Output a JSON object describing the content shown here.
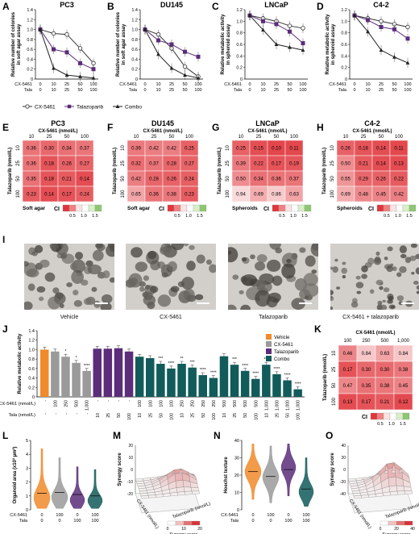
{
  "figure": {
    "labels": [
      "A",
      "B",
      "C",
      "D",
      "E",
      "F",
      "G",
      "H",
      "I",
      "J",
      "K",
      "L",
      "M",
      "N",
      "O"
    ],
    "colors": {
      "cx": "#9a9a9a",
      "tala": "#5b2d7a",
      "combo": "#125b5b",
      "vehicle": "#f08a2a",
      "syn_low": "#ffffff",
      "syn_high": "#d9323a"
    }
  },
  "row1": {
    "panels": [
      {
        "label": "A",
        "title": "PC3",
        "ylabel": [
          "Relative number of colonies",
          "in soft agar assay"
        ],
        "yticks": [
          "0",
          "0.2",
          "0.4",
          "0.6",
          "0.8",
          "1.0",
          "1.2",
          "1.4"
        ],
        "ymax": 1.4,
        "series": [
          [
            1.0,
            0.92,
            0.9,
            0.62,
            0.32
          ],
          [
            1.0,
            0.6,
            0.54,
            0.32,
            0.2
          ],
          [
            1.0,
            0.22,
            0.08,
            0.05,
            0.02
          ]
        ]
      },
      {
        "label": "B",
        "title": "DU145",
        "ylabel": [
          "Relative number of colonies",
          "in soft agar assay"
        ],
        "yticks": [
          "0",
          "0.2",
          "0.4",
          "0.6",
          "0.8",
          "1.0",
          "1.2",
          "1.4"
        ],
        "ymax": 1.4,
        "series": [
          [
            1.0,
            0.9,
            0.62,
            0.25,
            0.05
          ],
          [
            1.0,
            0.78,
            0.7,
            0.55,
            0.45
          ],
          [
            1.0,
            0.5,
            0.22,
            0.08,
            0.02
          ]
        ]
      },
      {
        "label": "C",
        "title": "LNCaP",
        "ylabel": [
          "Relative metabolic activity",
          "in spheroid assay"
        ],
        "yticks": [
          "0",
          "0.2",
          "0.4",
          "0.6",
          "0.8",
          "1.0",
          "1.2"
        ],
        "ymax": 1.2,
        "series": [
          [
            1.1,
            1.05,
            1.0,
            0.92,
            0.88
          ],
          [
            1.1,
            1.0,
            0.95,
            0.82,
            0.62
          ],
          [
            1.1,
            0.85,
            0.6,
            0.55,
            0.5
          ]
        ]
      },
      {
        "label": "D",
        "title": "C4-2",
        "ylabel": [
          "Relative metabolic activity",
          "in spheroid assay"
        ],
        "yticks": [
          "0",
          "0.2",
          "0.4",
          "0.6",
          "0.8",
          "1.0",
          "1.2"
        ],
        "ymax": 1.2,
        "series": [
          [
            1.1,
            1.05,
            1.0,
            0.95,
            0.9
          ],
          [
            1.1,
            1.02,
            0.9,
            0.86,
            0.7
          ],
          [
            1.1,
            0.82,
            0.5,
            0.38,
            0.28
          ]
        ]
      }
    ],
    "xrows": {
      "label1": "CX-5461",
      "label2": "Tala",
      "x1": [
        "0",
        "10",
        "25",
        "50",
        "100"
      ],
      "x2": [
        "0",
        "10",
        "25",
        "50",
        "100"
      ]
    },
    "legend": [
      "CX-5461",
      "Talazoparib",
      "Combo"
    ]
  },
  "row2": {
    "header": "CX-5461 (nmol/L)",
    "ylabel": "Talazoparib (nmol/L)",
    "cols": [
      "10",
      "25",
      "50",
      "100"
    ],
    "rows": [
      "10",
      "25",
      "50",
      "100"
    ],
    "ci_label": "CI",
    "ci_ticks": [
      "0.5",
      "1.0",
      "1.5"
    ],
    "panels": [
      {
        "label": "E",
        "title": "PC3",
        "assay": "Soft agar",
        "values": [
          [
            "0.36",
            "0.30",
            "0.34",
            "0.37"
          ],
          [
            "0.36",
            "0.18",
            "0.26",
            "0.27"
          ],
          [
            "0.35",
            "0.18",
            "0.21",
            "0.14"
          ],
          [
            "0.23",
            "0.14",
            "0.17",
            "0.24"
          ]
        ]
      },
      {
        "label": "F",
        "title": "DU145",
        "assay": "Soft agar",
        "values": [
          [
            "0.39",
            "0.42",
            "0.42",
            "0.25"
          ],
          [
            "0.32",
            "0.37",
            "0.28",
            "0.27"
          ],
          [
            "0.42",
            "0.28",
            "0.26",
            "0.24"
          ],
          [
            "0.65",
            "0.36",
            "0.38",
            "0.23"
          ]
        ]
      },
      {
        "label": "G",
        "title": "LNCaP",
        "assay": "Spheroids",
        "values": [
          [
            "0.25",
            "0.15",
            "0.10",
            "0.11"
          ],
          [
            "0.39",
            "0.22",
            "0.17",
            "0.19"
          ],
          [
            "0.50",
            "0.34",
            "0.36",
            "0.37"
          ],
          [
            "0.94",
            "0.69",
            "0.86",
            "0.63"
          ]
        ]
      },
      {
        "label": "H",
        "title": "C4-2",
        "assay": "Spheroids",
        "values": [
          [
            "0.26",
            "0.18",
            "0.14",
            "0.11"
          ],
          [
            "0.50",
            "0.21",
            "0.14",
            "0.13"
          ],
          [
            "0.55",
            "0.29",
            "0.26",
            "0.22"
          ],
          [
            "0.69",
            "0.48",
            "0.45",
            "0.42"
          ]
        ]
      }
    ]
  },
  "row3": {
    "label": "I",
    "captions": [
      "Vehicle",
      "CX-5461",
      "Talazoparib",
      "CX-5461 + talazoparib"
    ]
  },
  "row4": {
    "J": {
      "label": "J",
      "ylabel": "Relative metabolic activity",
      "yticks": [
        "0",
        "0.2",
        "0.4",
        "0.6",
        "0.8",
        "1.0",
        "1.2",
        "1.4"
      ],
      "legend": [
        "Vehicle",
        "CX-5461",
        "Talazoparib",
        "Combo"
      ],
      "xrow1_label": "CX-5461 (nmol/L)",
      "xrow2_label": "Tala (nmol/L)",
      "bars": [
        {
          "g": 0,
          "v": 1.0,
          "cx": "-",
          "ta": "-",
          "sig": ""
        },
        {
          "g": 1,
          "v": 0.96,
          "cx": "100",
          "ta": "-",
          "sig": ""
        },
        {
          "g": 1,
          "v": 0.85,
          "cx": "250",
          "ta": "-",
          "sig": "*"
        },
        {
          "g": 1,
          "v": 0.72,
          "cx": "500",
          "ta": "-",
          "sig": "*"
        },
        {
          "g": 1,
          "v": 0.55,
          "cx": "1,000",
          "ta": "-",
          "sig": "****"
        },
        {
          "g": 2,
          "v": 1.02,
          "cx": "-",
          "ta": "10",
          "sig": ""
        },
        {
          "g": 2,
          "v": 1.02,
          "cx": "-",
          "ta": "25",
          "sig": ""
        },
        {
          "g": 2,
          "v": 1.03,
          "cx": "-",
          "ta": "50",
          "sig": ""
        },
        {
          "g": 2,
          "v": 0.96,
          "cx": "-",
          "ta": "100",
          "sig": ""
        },
        {
          "g": 3,
          "v": 0.85,
          "cx": "100",
          "ta": "10",
          "sig": ""
        },
        {
          "g": 3,
          "v": 0.82,
          "cx": "100",
          "ta": "25",
          "sig": ""
        },
        {
          "g": 3,
          "v": 0.7,
          "cx": "100",
          "ta": "50",
          "sig": "***"
        },
        {
          "g": 3,
          "v": 0.6,
          "cx": "100",
          "ta": "100",
          "sig": "****"
        },
        {
          "g": 3,
          "v": 0.7,
          "cx": "250",
          "ta": "10",
          "sig": "**"
        },
        {
          "g": 3,
          "v": 0.62,
          "cx": "250",
          "ta": "25",
          "sig": "***"
        },
        {
          "g": 3,
          "v": 0.46,
          "cx": "250",
          "ta": "50",
          "sig": "****"
        },
        {
          "g": 3,
          "v": 0.4,
          "cx": "250",
          "ta": "100",
          "sig": "****"
        },
        {
          "g": 3,
          "v": 0.86,
          "cx": "500",
          "ta": "10",
          "sig": ""
        },
        {
          "g": 3,
          "v": 0.68,
          "cx": "500",
          "ta": "25",
          "sig": "***"
        },
        {
          "g": 3,
          "v": 0.55,
          "cx": "500",
          "ta": "50",
          "sig": "****"
        },
        {
          "g": 3,
          "v": 0.38,
          "cx": "500",
          "ta": "100",
          "sig": "****"
        },
        {
          "g": 3,
          "v": 0.68,
          "cx": "1,000",
          "ta": "10",
          "sig": "***"
        },
        {
          "g": 3,
          "v": 0.48,
          "cx": "1,000",
          "ta": "25",
          "sig": "****"
        },
        {
          "g": 3,
          "v": 0.35,
          "cx": "1,000",
          "ta": "50",
          "sig": "****"
        },
        {
          "g": 3,
          "v": 0.16,
          "cx": "1,000",
          "ta": "100",
          "sig": "****"
        }
      ]
    },
    "K": {
      "label": "K",
      "header": "CX-5461 (nmol/L)",
      "ylabel": "Talazoparib (nmol/L)",
      "cols": [
        "100",
        "250",
        "500",
        "1,000"
      ],
      "rows": [
        "10",
        "25",
        "50",
        "100"
      ],
      "values": [
        [
          "0.46",
          "0.84",
          "0.63",
          "0.84"
        ],
        [
          "0.17",
          "0.30",
          "0.30",
          "0.38"
        ],
        [
          "0.47",
          "0.35",
          "0.38",
          "0.45"
        ],
        [
          "0.13",
          "0.17",
          "0.21",
          "0.12"
        ]
      ],
      "ci_label": "CI",
      "ci_ticks": [
        "0.5",
        "1.0",
        "1.5"
      ]
    }
  },
  "row5": {
    "L": {
      "label": "L",
      "ylabel": "Organoid area (x10³ µm²)",
      "yticks": [
        "0",
        "1",
        "2",
        "3",
        "4",
        "5"
      ],
      "xrow1": [
        "0",
        "100",
        "0",
        "100"
      ],
      "xrow2": [
        "0",
        "0",
        "100",
        "100"
      ],
      "xlabel1": "CX-5461",
      "xlabel2": "Tala"
    },
    "M": {
      "label": "M",
      "zlabel": "Synergy score",
      "xlabel": "Talazoparib (nmol/L)",
      "ylabel": "CX-5461 (nmol/L)",
      "bar_label": "Synergy score",
      "bar_ticks": [
        "0",
        "10",
        "20"
      ],
      "zticks": [
        "20",
        "10",
        "0",
        "-10",
        "-20"
      ]
    },
    "N": {
      "label": "N",
      "ylabel": "Hoechst texture",
      "yticks": [
        "0",
        "10",
        "20",
        "30",
        "40"
      ],
      "xrow1": [
        "0",
        "100",
        "0",
        "100"
      ],
      "xrow2": [
        "0",
        "0",
        "100",
        "100"
      ],
      "xlabel1": "CX-5461",
      "xlabel2": "Tala"
    },
    "O": {
      "label": "O",
      "zlabel": "Synergy score",
      "xlabel": "Talazoparib (nmol/L)",
      "ylabel": "CX-5461 (nmol/L)",
      "bar_label": "Synergy score",
      "bar_ticks": [
        "0",
        "20",
        "40"
      ],
      "zticks": [
        "40",
        "20",
        "0",
        "-20",
        "-40"
      ]
    }
  }
}
